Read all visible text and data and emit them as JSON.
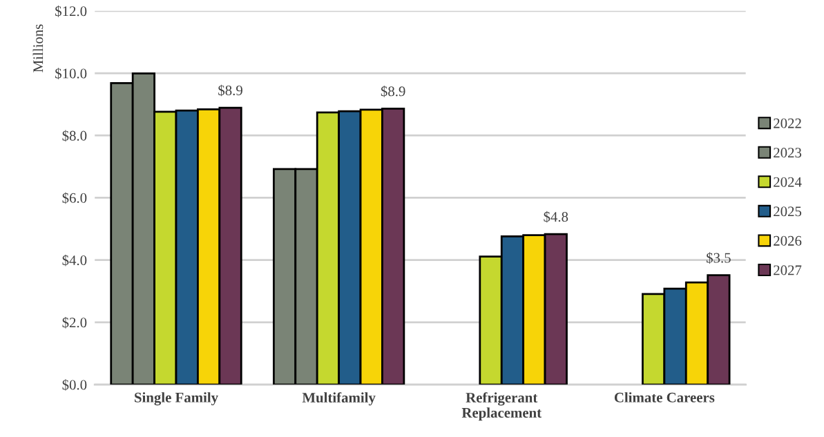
{
  "chart_data": {
    "type": "bar",
    "ylabel": "Millions",
    "categories": [
      "Single Family",
      "Multifamily",
      "Refrigerant\nReplacement",
      "Climate Careers"
    ],
    "series": [
      {
        "name": "2022",
        "color": "#7a8476",
        "values": [
          9.68,
          6.92,
          null,
          null
        ]
      },
      {
        "name": "2023",
        "color": "#7a8476",
        "values": [
          9.99,
          6.92,
          null,
          null
        ]
      },
      {
        "name": "2024",
        "color": "#c5d82f",
        "values": [
          8.76,
          8.74,
          4.11,
          2.91
        ]
      },
      {
        "name": "2025",
        "color": "#225d8a",
        "values": [
          8.8,
          8.78,
          4.76,
          3.08
        ]
      },
      {
        "name": "2026",
        "color": "#f7d408",
        "values": [
          8.84,
          8.83,
          4.8,
          3.28
        ]
      },
      {
        "name": "2027",
        "color": "#6b3755",
        "values": [
          8.89,
          8.86,
          4.83,
          3.51
        ],
        "value_labels": [
          "$8.9",
          "$8.9",
          "$4.8",
          "$3.5"
        ]
      }
    ],
    "ylim": [
      0,
      12
    ],
    "yticks": [
      {
        "value": 0,
        "label": "$0.0"
      },
      {
        "value": 2,
        "label": "$2.0"
      },
      {
        "value": 4,
        "label": "$4.0"
      },
      {
        "value": 6,
        "label": "$6.0"
      },
      {
        "value": 8,
        "label": "$8.0"
      },
      {
        "value": 10,
        "label": "$10.0"
      },
      {
        "value": 12,
        "label": "$12.0"
      }
    ],
    "grid": "y",
    "legend": "right"
  }
}
